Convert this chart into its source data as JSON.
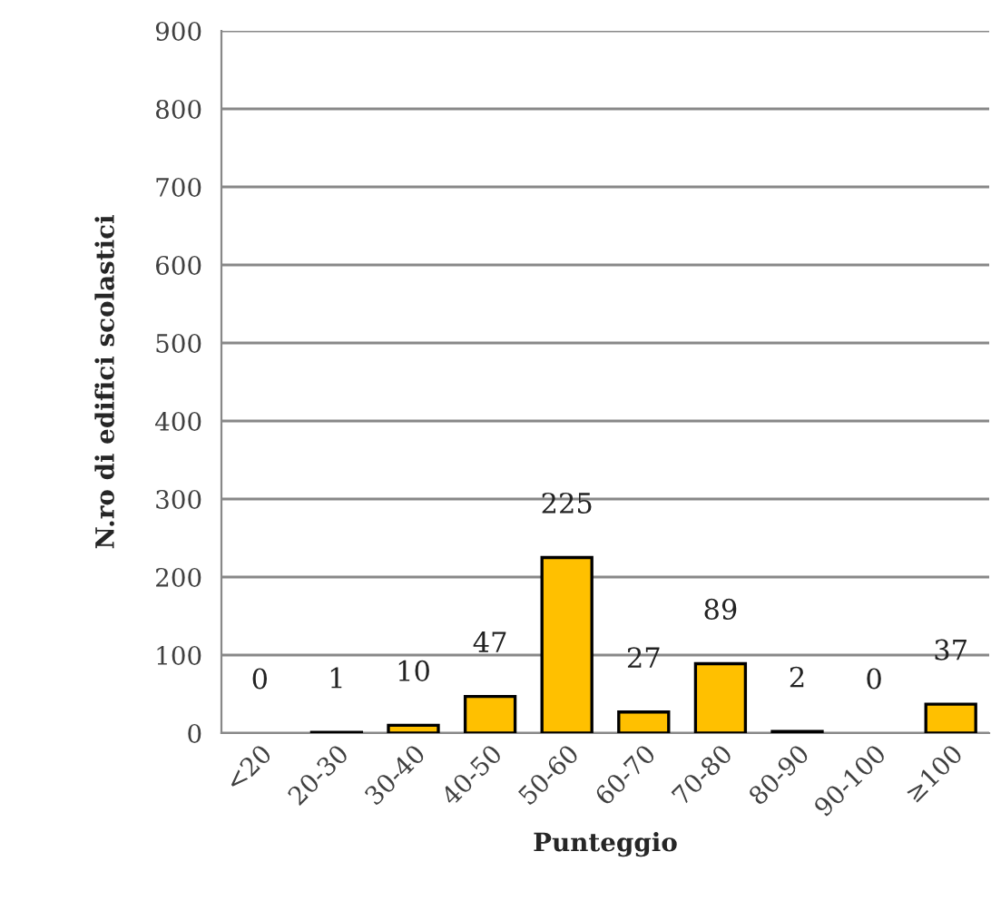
{
  "chart_data": {
    "type": "bar",
    "xlabel": "Punteggio",
    "ylabel": "N.ro di edifici scolastici",
    "categories": [
      "<20",
      "20-30",
      "30-40",
      "40-50",
      "50-60",
      "60-70",
      "70-80",
      "80-90",
      "90-100",
      "≥100"
    ],
    "values": [
      0,
      1,
      10,
      47,
      225,
      27,
      89,
      2,
      0,
      37
    ],
    "color": "#ffc000",
    "ylim": [
      0,
      900
    ],
    "yticks": [
      0,
      100,
      200,
      300,
      400,
      500,
      600,
      700,
      800,
      900
    ],
    "grid": "y",
    "data_labels": true,
    "legend": false
  }
}
